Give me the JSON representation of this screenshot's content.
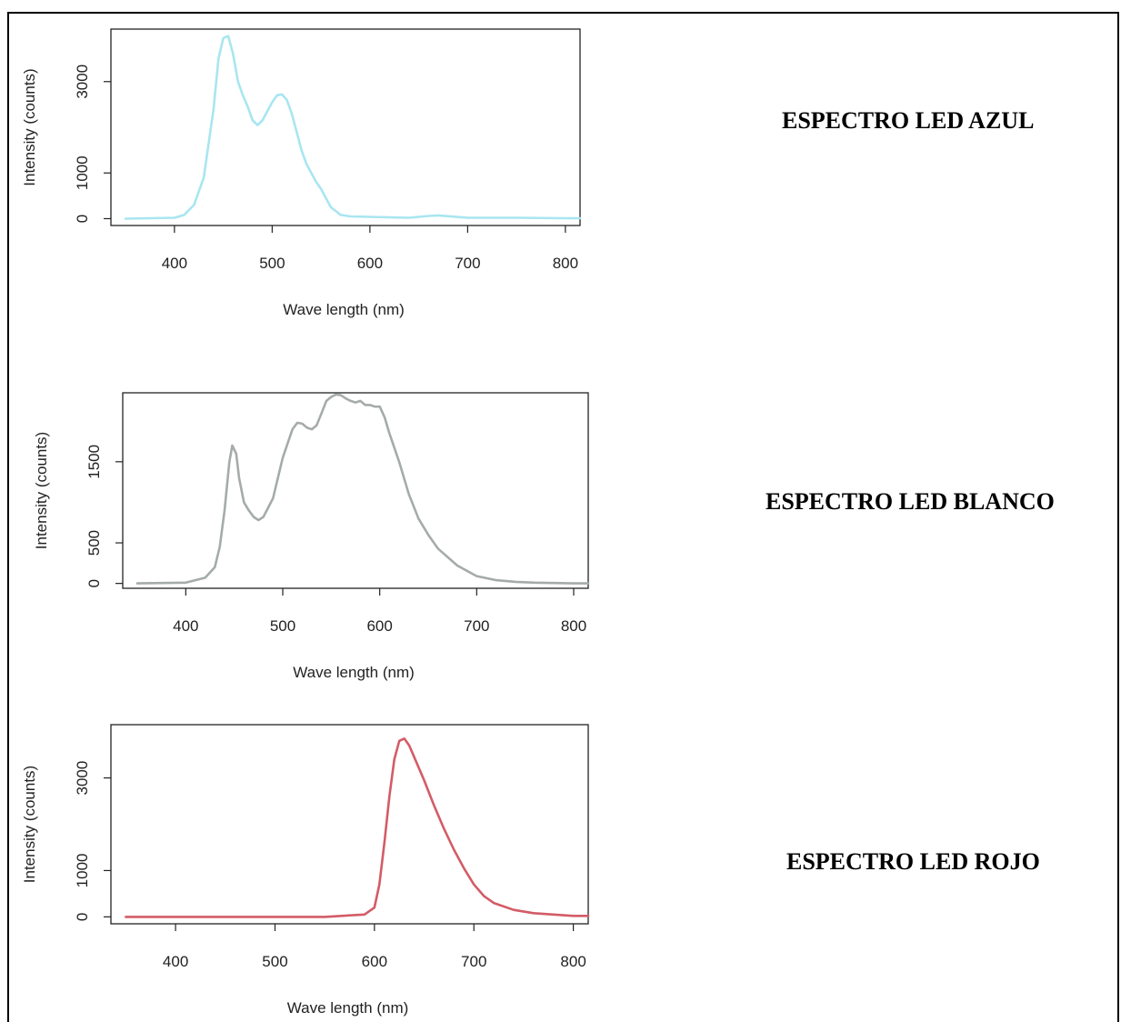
{
  "labels": {
    "azul": "ESPECTRO LED AZUL",
    "blanco": "ESPECTRO LED BLANCO",
    "rojo": "ESPECTRO LED ROJO"
  },
  "chart_data": [
    {
      "type": "line",
      "xlabel": "Wave length (nm)",
      "ylabel": "Intensity (counts)",
      "xlim": [
        335,
        815
      ],
      "ylim": [
        -150,
        4150
      ],
      "xticks": [
        400,
        500,
        600,
        700,
        800
      ],
      "yticks": [
        0,
        1000,
        3000
      ],
      "color": "#a8e6f0",
      "series": [
        {
          "x": [
            350,
            400,
            410,
            420,
            430,
            440,
            445,
            450,
            455,
            460,
            465,
            470,
            475,
            480,
            485,
            490,
            495,
            500,
            505,
            510,
            515,
            520,
            525,
            530,
            535,
            540,
            545,
            550,
            555,
            560,
            570,
            580,
            600,
            640,
            660,
            670,
            700,
            750,
            800,
            815
          ],
          "y": [
            0,
            20,
            80,
            300,
            900,
            2400,
            3500,
            3950,
            4000,
            3600,
            3000,
            2700,
            2450,
            2150,
            2050,
            2150,
            2350,
            2550,
            2700,
            2720,
            2600,
            2300,
            1900,
            1500,
            1200,
            1000,
            800,
            650,
            450,
            250,
            80,
            50,
            40,
            20,
            60,
            70,
            20,
            20,
            10,
            10
          ]
        }
      ]
    },
    {
      "type": "line",
      "xlabel": "Wave length (nm)",
      "ylabel": "Intensity (counts)",
      "xlim": [
        335,
        815
      ],
      "ylim": [
        -60,
        2350
      ],
      "xticks": [
        400,
        500,
        600,
        700,
        800
      ],
      "yticks": [
        0,
        500,
        1500
      ],
      "color": "#a5aca8",
      "series": [
        {
          "x": [
            350,
            400,
            420,
            430,
            435,
            440,
            445,
            448,
            452,
            455,
            460,
            465,
            470,
            475,
            480,
            490,
            500,
            510,
            515,
            520,
            525,
            530,
            535,
            540,
            545,
            550,
            555,
            560,
            565,
            570,
            575,
            580,
            585,
            590,
            595,
            600,
            605,
            610,
            620,
            630,
            640,
            650,
            660,
            680,
            700,
            720,
            740,
            760,
            800,
            815
          ],
          "y": [
            0,
            10,
            70,
            200,
            450,
            900,
            1500,
            1700,
            1600,
            1300,
            1000,
            900,
            820,
            780,
            820,
            1050,
            1550,
            1900,
            1980,
            1970,
            1920,
            1900,
            1950,
            2100,
            2250,
            2300,
            2330,
            2320,
            2280,
            2250,
            2230,
            2250,
            2200,
            2200,
            2180,
            2180,
            2050,
            1850,
            1500,
            1100,
            800,
            600,
            430,
            220,
            90,
            40,
            20,
            10,
            0,
            0
          ]
        }
      ]
    },
    {
      "type": "line",
      "xlabel": "Wave length (nm)",
      "ylabel": "Intensity (counts)",
      "xlim": [
        335,
        815
      ],
      "ylim": [
        -150,
        4150
      ],
      "xticks": [
        400,
        500,
        600,
        700,
        800
      ],
      "yticks": [
        0,
        1000,
        3000
      ],
      "color": "#d35c66",
      "series": [
        {
          "x": [
            350,
            450,
            550,
            590,
            600,
            605,
            610,
            615,
            620,
            625,
            630,
            635,
            640,
            650,
            660,
            670,
            680,
            690,
            700,
            710,
            720,
            740,
            760,
            800,
            815
          ],
          "y": [
            0,
            0,
            0,
            50,
            200,
            700,
            1600,
            2600,
            3400,
            3800,
            3850,
            3700,
            3450,
            2950,
            2400,
            1900,
            1450,
            1050,
            700,
            450,
            300,
            150,
            80,
            20,
            20
          ]
        }
      ]
    }
  ]
}
